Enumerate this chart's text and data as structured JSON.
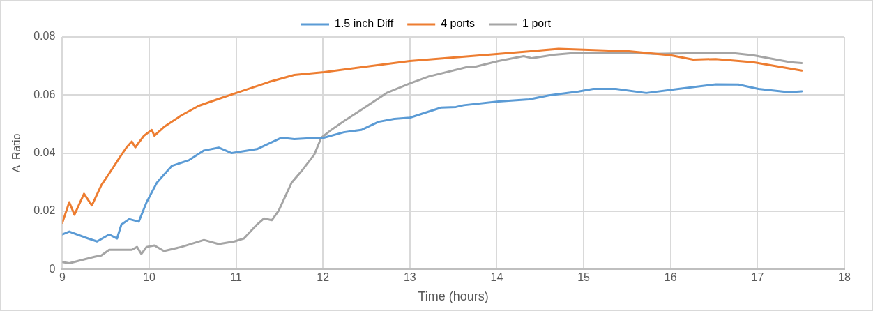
{
  "chart_data": {
    "type": "line",
    "xlabel": "Time (hours)",
    "ylabel": "A  Ratio",
    "xlim": [
      9,
      18
    ],
    "xticks": [
      9,
      10,
      11,
      12,
      13,
      14,
      15,
      16,
      17,
      18
    ],
    "ylim": [
      0,
      0.08
    ],
    "yticks": [
      0,
      0.02,
      0.04,
      0.06,
      0.08
    ],
    "grid": true,
    "legend": "top",
    "marker": "none",
    "line_style": "solid",
    "series": [
      {
        "name": "1.5 inch Diff",
        "color": "#5b9bd5",
        "x": [
          9,
          9.08,
          9.17,
          9.25,
          9.4,
          9.54,
          9.63,
          9.68,
          9.77,
          9.88,
          9.97,
          10.09,
          10.26,
          10.46,
          10.63,
          10.8,
          10.95,
          11.24,
          11.52,
          11.67,
          11.95,
          12.01,
          12.24,
          12.44,
          12.64,
          12.82,
          13.0,
          13.36,
          13.53,
          13.62,
          14.02,
          14.37,
          14.6,
          14.94,
          15.11,
          15.37,
          15.72,
          16.09,
          16.52,
          16.78,
          17.01,
          17.36,
          17.51
        ],
        "values": [
          0.012,
          0.013,
          0.012,
          0.0111,
          0.0096,
          0.012,
          0.0106,
          0.0154,
          0.0173,
          0.0164,
          0.0231,
          0.0299,
          0.0356,
          0.0376,
          0.0409,
          0.0419,
          0.04,
          0.0414,
          0.0453,
          0.0448,
          0.0453,
          0.0453,
          0.0472,
          0.048,
          0.0508,
          0.0518,
          0.0522,
          0.0557,
          0.0559,
          0.0565,
          0.0578,
          0.0585,
          0.0599,
          0.0612,
          0.0621,
          0.0621,
          0.0607,
          0.0621,
          0.0637,
          0.0636,
          0.0621,
          0.061,
          0.0613
        ]
      },
      {
        "name": "4 ports",
        "color": "#ed7d31",
        "x": [
          9,
          9.08,
          9.14,
          9.25,
          9.34,
          9.45,
          9.54,
          9.66,
          9.74,
          9.8,
          9.84,
          9.94,
          10.03,
          10.06,
          10.17,
          10.37,
          10.57,
          10.8,
          11.0,
          11.38,
          11.67,
          12.01,
          13.0,
          14.0,
          14.71,
          15.0,
          15.52,
          16.0,
          16.26,
          16.52,
          16.95,
          17.3,
          17.51
        ],
        "values": [
          0.016,
          0.0231,
          0.0188,
          0.026,
          0.022,
          0.029,
          0.033,
          0.0385,
          0.042,
          0.044,
          0.042,
          0.046,
          0.048,
          0.046,
          0.049,
          0.053,
          0.0563,
          0.0587,
          0.0607,
          0.0645,
          0.0669,
          0.0679,
          0.0717,
          0.0741,
          0.0759,
          0.0756,
          0.0751,
          0.0737,
          0.0722,
          0.0724,
          0.0713,
          0.0695,
          0.0684
        ]
      },
      {
        "name": "1 port",
        "color": "#a5a5a5",
        "x": [
          9,
          9.08,
          9.37,
          9.45,
          9.54,
          9.8,
          9.86,
          9.91,
          9.97,
          10.06,
          10.17,
          10.37,
          10.63,
          10.8,
          10.98,
          11.09,
          11.24,
          11.32,
          11.41,
          11.49,
          11.64,
          11.75,
          11.9,
          11.98,
          12.1,
          12.24,
          12.44,
          12.73,
          13.0,
          13.22,
          13.68,
          13.76,
          14.02,
          14.31,
          14.4,
          14.66,
          14.94,
          15.52,
          15.8,
          16.67,
          16.95,
          17.38,
          17.51
        ],
        "values": [
          0.0025,
          0.0021,
          0.0043,
          0.0048,
          0.0067,
          0.0067,
          0.0077,
          0.0053,
          0.0077,
          0.0082,
          0.0063,
          0.0077,
          0.0101,
          0.0087,
          0.0096,
          0.0106,
          0.0154,
          0.0175,
          0.0169,
          0.0202,
          0.0299,
          0.0337,
          0.0395,
          0.0453,
          0.0481,
          0.051,
          0.0549,
          0.0607,
          0.064,
          0.0664,
          0.0698,
          0.0698,
          0.0717,
          0.0734,
          0.0727,
          0.0739,
          0.0746,
          0.0746,
          0.0742,
          0.0746,
          0.0737,
          0.0713,
          0.071
        ]
      }
    ]
  }
}
